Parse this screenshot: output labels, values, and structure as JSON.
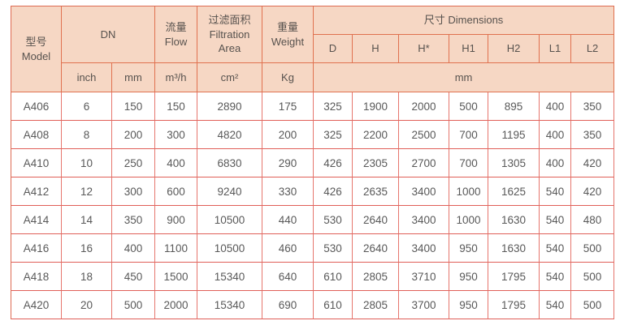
{
  "header": {
    "model": {
      "zh": "型号",
      "en": "Model"
    },
    "dn": "DN",
    "flow": {
      "zh": "流量",
      "en": "Flow"
    },
    "filtration": {
      "zh": "过滤面积",
      "en": "Filtration Area"
    },
    "weight": {
      "zh": "重量",
      "en": "Weight"
    },
    "dimensions": "尺寸 Dimensions",
    "dim_cols": [
      "D",
      "H",
      "H*",
      "H1",
      "H2",
      "L1",
      "L2"
    ],
    "units": {
      "inch": "inch",
      "mm": "mm",
      "flow": "m³/h",
      "area": "cm²",
      "weight": "Kg",
      "dims_mm": "mm"
    }
  },
  "rows": [
    [
      "A406",
      "6",
      "150",
      "150",
      "2890",
      "175",
      "325",
      "1900",
      "2000",
      "500",
      "895",
      "400",
      "350"
    ],
    [
      "A408",
      "8",
      "200",
      "300",
      "4820",
      "200",
      "325",
      "2200",
      "2500",
      "700",
      "1195",
      "400",
      "350"
    ],
    [
      "A410",
      "10",
      "250",
      "400",
      "6830",
      "290",
      "426",
      "2305",
      "2700",
      "700",
      "1305",
      "400",
      "420"
    ],
    [
      "A412",
      "12",
      "300",
      "600",
      "9240",
      "330",
      "426",
      "2635",
      "3400",
      "1000",
      "1625",
      "540",
      "420"
    ],
    [
      "A414",
      "14",
      "350",
      "900",
      "10500",
      "440",
      "530",
      "2640",
      "3400",
      "1000",
      "1630",
      "540",
      "480"
    ],
    [
      "A416",
      "16",
      "400",
      "1100",
      "10500",
      "460",
      "530",
      "2640",
      "3400",
      "950",
      "1630",
      "540",
      "500"
    ],
    [
      "A418",
      "18",
      "450",
      "1500",
      "15340",
      "640",
      "610",
      "2805",
      "3710",
      "950",
      "1795",
      "540",
      "500"
    ],
    [
      "A420",
      "20",
      "500",
      "2000",
      "15340",
      "690",
      "610",
      "2805",
      "3700",
      "950",
      "1795",
      "540",
      "500"
    ]
  ],
  "colors": {
    "header_bg": "#f6d7c4",
    "header_border": "#e0714f",
    "grid_border": "#e6766d",
    "text": "#595959"
  }
}
